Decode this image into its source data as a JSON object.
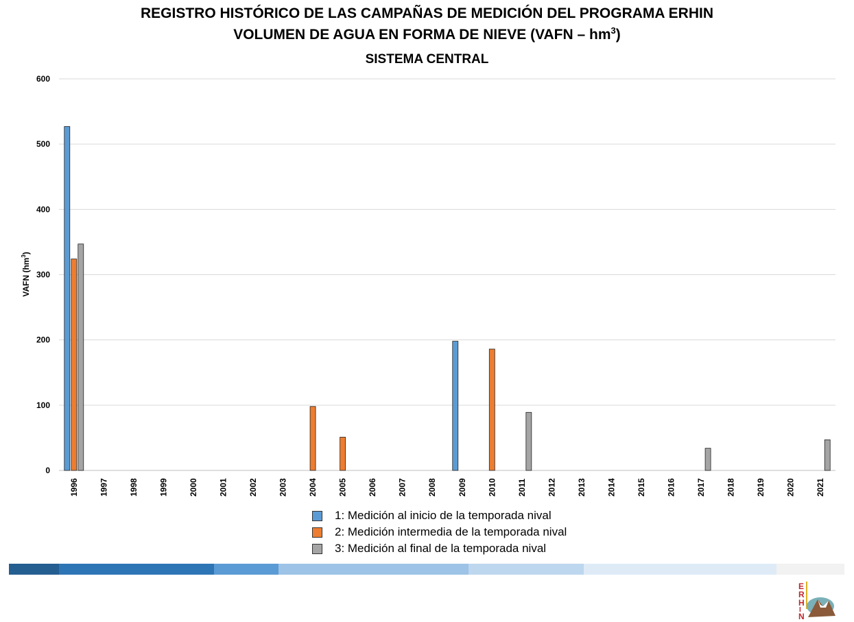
{
  "chart_data": {
    "type": "bar",
    "title": "REGISTRO HISTÓRICO DE LAS CAMPAÑAS DE MEDICIÓN DEL PROGRAMA ERHIN",
    "subtitle": "VOLUMEN DE AGUA EN FORMA DE NIEVE (VAFN – hm",
    "subtitle_sup": "3",
    "subtitle_end": ")",
    "region": "SISTEMA CENTRAL",
    "ylabel": "VAFN (hm",
    "ylabel_sup": "3",
    "ylabel_end": ")",
    "ylim": [
      0,
      600
    ],
    "yticks": [
      0,
      100,
      200,
      300,
      400,
      500,
      600
    ],
    "grid": true,
    "legend_position": "bottom",
    "categories": [
      "1996",
      "1997",
      "1998",
      "1999",
      "2000",
      "2001",
      "2002",
      "2003",
      "2004",
      "2005",
      "2006",
      "2007",
      "2008",
      "2009",
      "2010",
      "2011",
      "2012",
      "2013",
      "2014",
      "2015",
      "2016",
      "2017",
      "2018",
      "2019",
      "2020",
      "2021"
    ],
    "series": [
      {
        "name": "1: Medición al inicio de la temporada nival",
        "color": "#5b9bd5",
        "values": [
          527,
          0,
          0,
          0,
          0,
          0,
          0,
          0,
          0,
          0,
          0,
          0,
          0,
          198,
          0,
          0,
          0,
          0,
          0,
          0,
          0,
          0,
          0,
          0,
          0,
          0
        ]
      },
      {
        "name": "2: Medición intermedia de la temporada nival",
        "color": "#ed7d31",
        "values": [
          324,
          0,
          0,
          0,
          0,
          0,
          0,
          0,
          98,
          51,
          0,
          0,
          0,
          0,
          186,
          0,
          0,
          0,
          0,
          0,
          0,
          0,
          0,
          0,
          0,
          0
        ]
      },
      {
        "name": "3: Medición al final de la temporada nival",
        "color": "#a5a5a5",
        "values": [
          347,
          0,
          0,
          0,
          0,
          0,
          0,
          0,
          0,
          0,
          0,
          0,
          0,
          0,
          0,
          89,
          0,
          0,
          0,
          0,
          0,
          34,
          0,
          0,
          0,
          47
        ]
      }
    ]
  },
  "band_colors": [
    "#255e91",
    "#2e75b6",
    "#5b9bd5",
    "#9dc3e6",
    "#bdd7ee",
    "#deebf7",
    "#f2f2f2"
  ],
  "logo_text": "ERHIN"
}
